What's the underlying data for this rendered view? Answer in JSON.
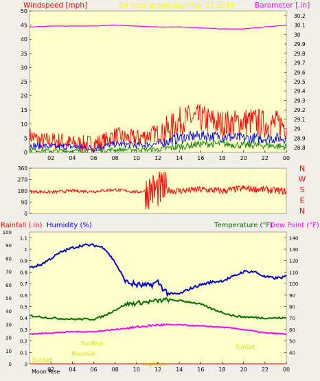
{
  "header": {
    "windspeed_label": "Windspeed [mph]",
    "title": "24 hour graph day   May 27 2016",
    "barometer_label": "Barometer [.in]"
  },
  "mid_header": {
    "rainfall_label": "Rainfall (.in)",
    "humidity_label": "Humidity (%)",
    "temperature_label": "Temperature (°F)",
    "dewpoint_label": "Dew Point (°F)"
  },
  "annotations": {
    "sunrise": "SunRise",
    "sunset": "SunSet",
    "sunset_right": "SunSet",
    "moonset": "MoonSet",
    "moonrise": "Moon Rise",
    "highsun": "HighSun"
  },
  "colors": {
    "plot_bg": "#ffffcc",
    "page_bg": "#f0f0e8",
    "wind": "#ff0000",
    "wind_avg": "#0000ff",
    "wind_low": "#008000",
    "barometer": "#ff00ff",
    "direction": "#ff0000",
    "humidity": "#0000cc",
    "temperature": "#007000",
    "dewpoint": "#ff00ff",
    "label_red": "#ff0000",
    "label_blue": "#0000ff",
    "label_green": "#006400",
    "title_yellow": "#ffff00"
  },
  "chart_data": [
    {
      "type": "line",
      "title": "24 hour graph day   May 27 2016",
      "x_tick_labels": [
        "02",
        "04",
        "06",
        "08",
        "10",
        "12",
        "14",
        "16",
        "18",
        "20",
        "22",
        "00"
      ],
      "ylabel": "Windspeed [mph]",
      "ylim": [
        0,
        50
      ],
      "y_ticks": [
        0,
        5,
        10,
        15,
        20,
        25,
        30,
        35,
        40,
        45,
        50
      ],
      "y2label": "Barometer [.in]",
      "y2lim": [
        28.75,
        30.25
      ],
      "y2_ticks": [
        28.8,
        28.9,
        29,
        29.1,
        29.2,
        29.3,
        29.4,
        29.5,
        29.6,
        29.7,
        29.8,
        29.9,
        30,
        30.1,
        30.2
      ],
      "series": [
        {
          "role": "gust",
          "axis": "left",
          "hours": [
            0,
            1,
            2,
            3,
            4,
            5,
            6,
            7,
            8,
            9,
            10,
            11,
            12,
            13,
            14,
            15,
            16,
            17,
            18,
            19,
            20,
            21,
            22,
            23,
            24
          ],
          "values": [
            6,
            4,
            4,
            4,
            3,
            3,
            3,
            4,
            6,
            5,
            5,
            6,
            7,
            8,
            11,
            12,
            12,
            11,
            10,
            10,
            11,
            11,
            10,
            10,
            10
          ]
        },
        {
          "role": "average",
          "axis": "left",
          "hours": [
            0,
            2,
            4,
            6,
            8,
            10,
            12,
            14,
            16,
            18,
            20,
            22,
            24
          ],
          "values": [
            2.5,
            2,
            2,
            1.5,
            3,
            2.5,
            3,
            5,
            6,
            5.5,
            5,
            5,
            5
          ]
        },
        {
          "role": "lull",
          "axis": "left",
          "hours": [
            0,
            2,
            4,
            6,
            8,
            10,
            12,
            14,
            16,
            18,
            20,
            22,
            24
          ],
          "values": [
            1,
            0.5,
            0.5,
            0.5,
            1,
            1,
            1,
            2,
            3,
            3,
            2.5,
            2.5,
            2
          ]
        },
        {
          "role": "barometer",
          "axis": "right",
          "hours": [
            0,
            2,
            4,
            6,
            8,
            10,
            12,
            14,
            16,
            18,
            20,
            21,
            22,
            23,
            24
          ],
          "values": [
            30.08,
            30.09,
            30.09,
            30.09,
            30.1,
            30.09,
            30.08,
            30.08,
            30.07,
            30.06,
            30.06,
            30.07,
            30.08,
            30.09,
            30.1
          ]
        }
      ]
    },
    {
      "type": "line",
      "title": "",
      "x_tick_labels": [],
      "y_ticks": [
        0,
        90,
        180,
        270,
        360
      ],
      "ylim": [
        0,
        360
      ],
      "direction_labels": [
        "N",
        "W",
        "S",
        "E",
        "N"
      ],
      "series": [
        {
          "role": "wind direction",
          "hours": [
            0,
            2,
            4,
            6,
            8,
            10,
            12,
            14,
            16,
            18,
            20,
            22,
            24
          ],
          "values": [
            175,
            170,
            180,
            175,
            190,
            170,
            190,
            180,
            190,
            180,
            200,
            190,
            175
          ]
        }
      ]
    },
    {
      "type": "line",
      "title": "",
      "x_tick_labels": [
        "02",
        "04",
        "06",
        "08",
        "10",
        "12",
        "14",
        "16",
        "18",
        "20",
        "22",
        "00"
      ],
      "rainfall_axis": {
        "label": "Rainfall (.in)",
        "ylim": [
          0,
          1.15
        ],
        "ticks": [
          0,
          0.1,
          0.2,
          0.3,
          0.4,
          0.5,
          0.6,
          0.7,
          0.8,
          0.9,
          1,
          1.1
        ]
      },
      "humidity_axis": {
        "label": "Humidity (%)",
        "ylim": [
          0,
          100
        ],
        "ticks": [
          0,
          10,
          20,
          30,
          40,
          50,
          60,
          70,
          80,
          90,
          100
        ]
      },
      "temperature_axis": {
        "label": "Temperature (°F)",
        "ylim": [
          30,
          145
        ],
        "ticks": [
          40,
          50,
          60,
          70,
          80,
          90,
          100,
          110,
          120,
          130,
          140
        ]
      },
      "series": [
        {
          "name": "Humidity (%)",
          "axis": "humidity",
          "hours": [
            0,
            1,
            2,
            3,
            4,
            5,
            6,
            7,
            8,
            9,
            10,
            11,
            12,
            12.5,
            13,
            14,
            15,
            16,
            17,
            18,
            19,
            20,
            21,
            22,
            23,
            24
          ],
          "values": [
            73,
            75,
            80,
            85,
            88,
            90,
            90,
            88,
            77,
            62,
            60,
            59,
            62,
            57,
            53,
            53,
            57,
            60,
            62,
            63,
            66,
            70,
            70,
            66,
            65,
            66
          ]
        },
        {
          "name": "Temperature (°F)",
          "axis": "temperature",
          "hours": [
            0,
            2,
            4,
            6,
            7,
            8,
            9,
            10,
            11,
            12,
            13,
            14,
            15,
            16,
            17,
            18,
            19,
            20,
            22,
            24
          ],
          "values": [
            72,
            70,
            69,
            69,
            72,
            77,
            82,
            83,
            84,
            85,
            86,
            85,
            84,
            82,
            78,
            75,
            72,
            71,
            70,
            70
          ]
        },
        {
          "name": "Dew Point (°F)",
          "axis": "temperature",
          "hours": [
            0,
            2,
            4,
            6,
            8,
            10,
            12,
            14,
            16,
            18,
            20,
            22,
            24
          ],
          "values": [
            56,
            57,
            58,
            58,
            60,
            62,
            64,
            64,
            63,
            62,
            60,
            57,
            56
          ]
        },
        {
          "name": "Rainfall (.in)",
          "axis": "rainfall",
          "hours": [
            0,
            24
          ],
          "values": [
            0,
            0
          ]
        }
      ]
    }
  ]
}
